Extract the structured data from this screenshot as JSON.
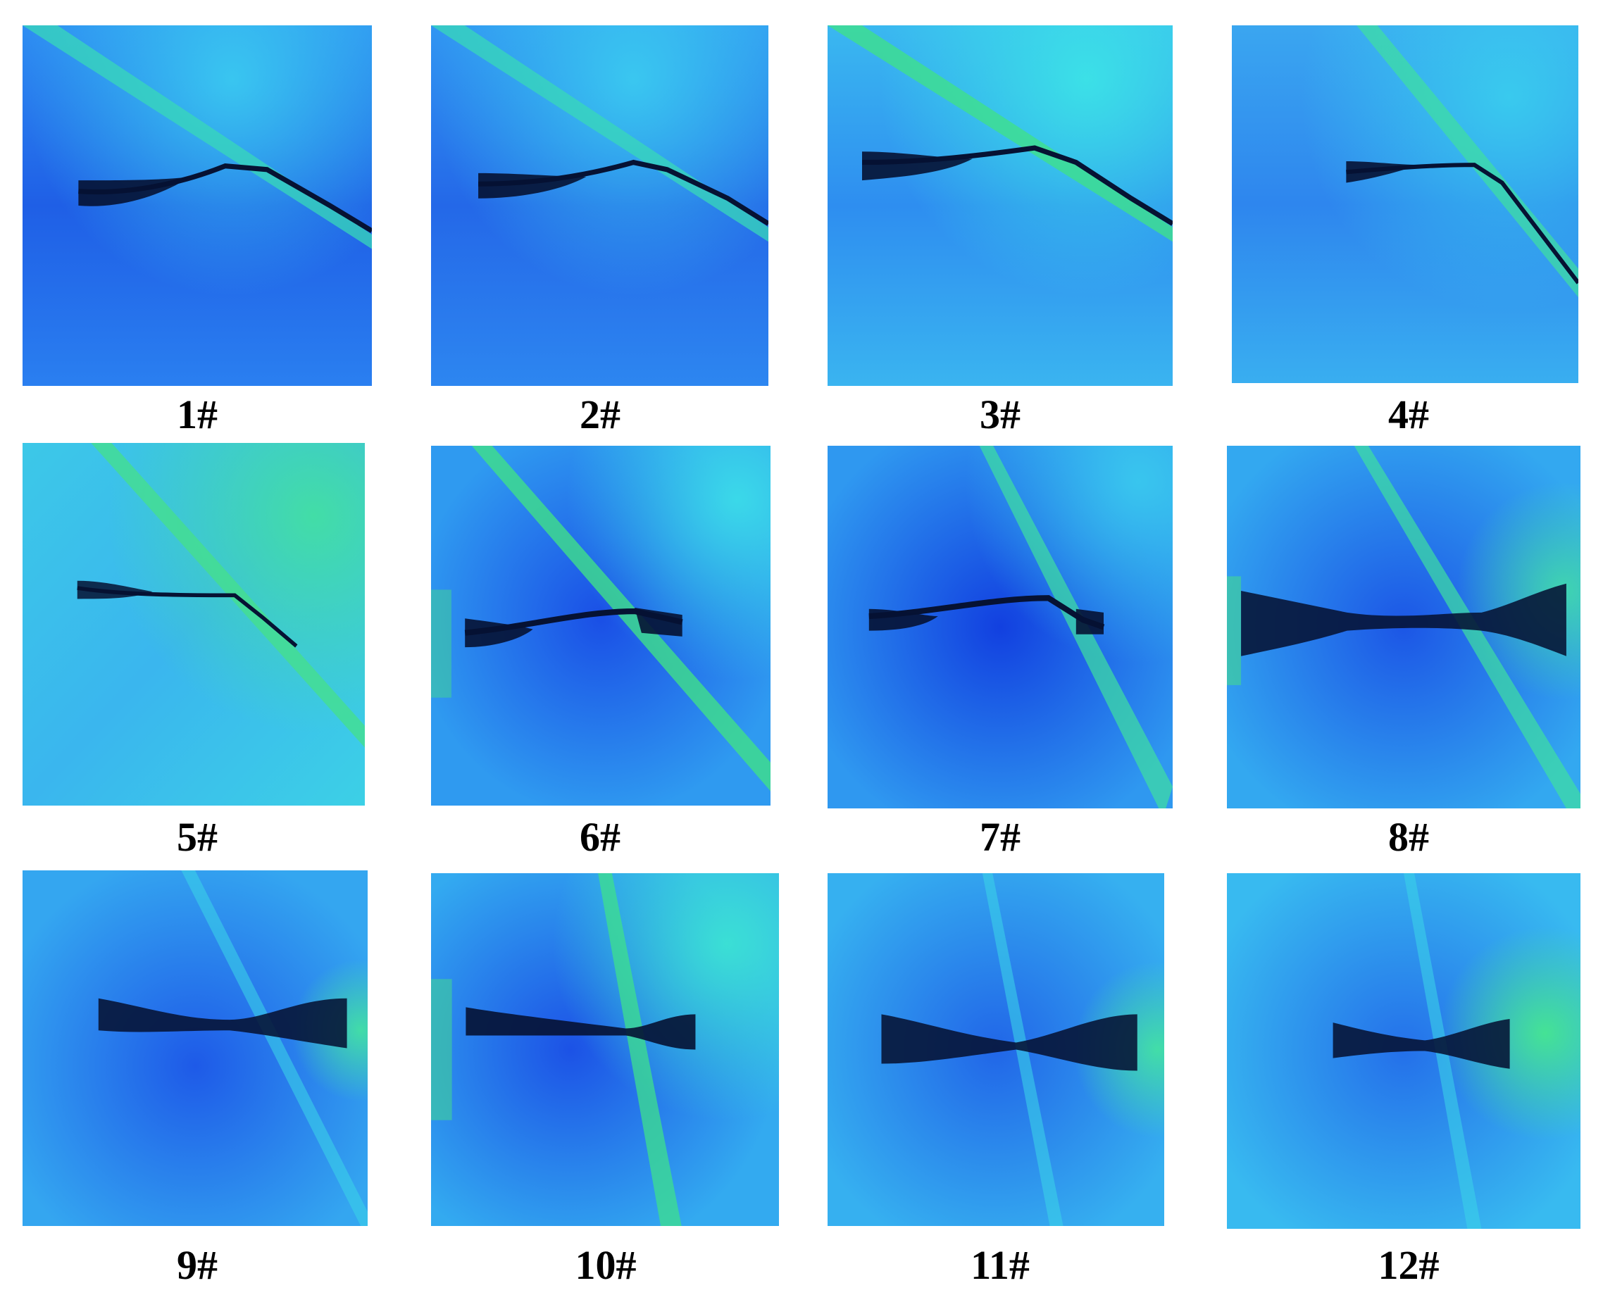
{
  "panels": [
    {
      "label": "1#",
      "image": "strain-field-1-image"
    },
    {
      "label": "2#",
      "image": "strain-field-2-image"
    },
    {
      "label": "3#",
      "image": "strain-field-3-image"
    },
    {
      "label": "4#",
      "image": "strain-field-4-image"
    },
    {
      "label": "5#",
      "image": "strain-field-5-image"
    },
    {
      "label": "6#",
      "image": "strain-field-6-image"
    },
    {
      "label": "7#",
      "image": "strain-field-7-image"
    },
    {
      "label": "8#",
      "image": "strain-field-8-image"
    },
    {
      "label": "9#",
      "image": "strain-field-9-image"
    },
    {
      "label": "10#",
      "image": "strain-field-10-image"
    },
    {
      "label": "11#",
      "image": "strain-field-11-image"
    },
    {
      "label": "12#",
      "image": "strain-field-12-image"
    }
  ],
  "colors": {
    "field_dark": "#1a4fe6",
    "field_mid": "#2a8cf0",
    "field_light": "#3ad3f0",
    "band_green": "#35e08a",
    "crack": "#061233"
  }
}
